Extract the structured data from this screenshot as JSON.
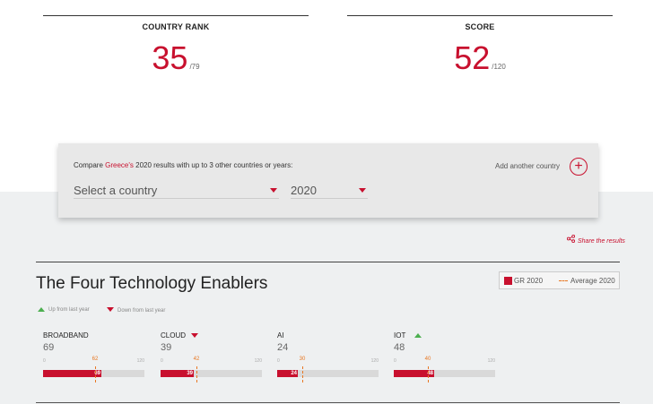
{
  "stats": {
    "rank": {
      "label": "COUNTRY RANK",
      "value": "35",
      "total": "/79"
    },
    "score": {
      "label": "SCORE",
      "value": "52",
      "total": "/120"
    }
  },
  "compare": {
    "text_before": "Compare ",
    "country": "Greece's",
    "text_after": " 2020 results with up to 3 other countries or years:",
    "add_label": "Add another country",
    "add_symbol": "+",
    "country_select": "Select a country",
    "year_select": "2020"
  },
  "share": {
    "label": "Share the results"
  },
  "section": {
    "title": "The Four Technology Enablers",
    "legend": {
      "country": "GR 2020",
      "average": "Average 2020"
    },
    "indicators": {
      "up": "Up from last year",
      "down": "Down from last year"
    },
    "scale": {
      "min": "0",
      "max": "120"
    },
    "enablers": [
      {
        "name": "BROADBAND",
        "score": "69",
        "value": 69,
        "average": 62,
        "avg_label": "62",
        "trend": "none"
      },
      {
        "name": "CLOUD",
        "score": "39",
        "value": 39,
        "average": 42,
        "avg_label": "42",
        "trend": "down"
      },
      {
        "name": "AI",
        "score": "24",
        "value": 24,
        "average": 30,
        "avg_label": "30",
        "trend": "none"
      },
      {
        "name": "IOT",
        "score": "48",
        "value": 48,
        "average": 40,
        "avg_label": "40",
        "trend": "up"
      }
    ]
  },
  "colors": {
    "accent": "#c8102e",
    "average": "#e87722",
    "up": "#4caf50"
  }
}
